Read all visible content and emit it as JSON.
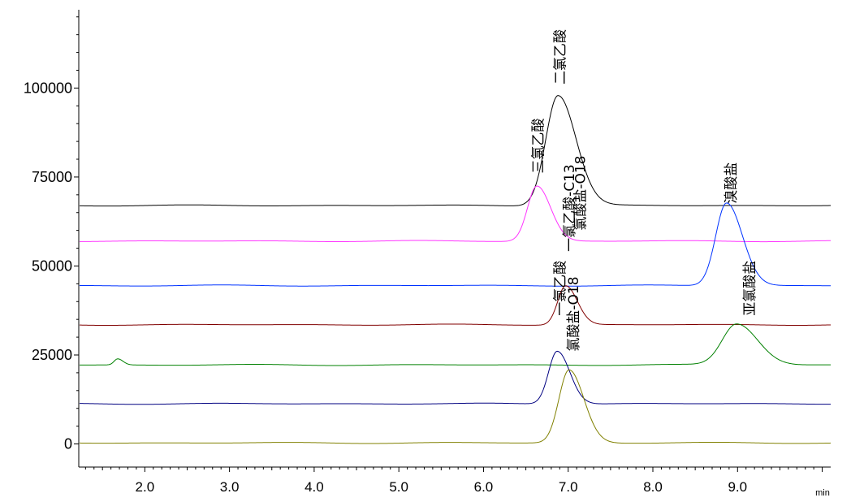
{
  "chart_data": {
    "type": "line",
    "title": "",
    "xlabel": "min",
    "ylabel": "",
    "xlim": [
      1.22,
      10.1
    ],
    "ylim": [
      -6500,
      122000
    ],
    "x_ticks": [
      2.0,
      3.0,
      4.0,
      5.0,
      6.0,
      7.0,
      8.0,
      9.0
    ],
    "x_tick_labels": [
      "2.0",
      "3.0",
      "4.0",
      "5.0",
      "6.0",
      "7.0",
      "8.0",
      "9.0"
    ],
    "y_ticks": [
      0,
      25000,
      50000,
      75000,
      100000
    ],
    "y_tick_labels": [
      "0",
      "25000",
      "50000",
      "75000",
      "100000"
    ],
    "grid": false,
    "legend": "none",
    "series": [
      {
        "color": "#000000",
        "baseline": 67000,
        "peaks": [
          {
            "x": 6.88,
            "y": 98000,
            "label": "二氯乙酸"
          }
        ]
      },
      {
        "color": "#ff33ff",
        "baseline": 57000,
        "peaks": [
          {
            "x": 6.63,
            "y": 72500,
            "label": "三氯乙酸"
          }
        ]
      },
      {
        "color": "#0033ff",
        "baseline": 44500,
        "peaks": [
          {
            "x": 8.87,
            "y": 67800,
            "label": "溴酸盐"
          }
        ]
      },
      {
        "color": "#800000",
        "baseline": 33500,
        "peaks": [
          {
            "x": 6.97,
            "y": 44500,
            "label": "一氯乙酸-C13"
          }
        ]
      },
      {
        "color": "#008000",
        "baseline": 22200,
        "peaks": [
          {
            "x": 1.68,
            "y": 23900,
            "label": ""
          },
          {
            "x": 8.99,
            "y": 33800,
            "label": "亚氯酸盐"
          }
        ]
      },
      {
        "color": "#000080",
        "baseline": 11300,
        "peaks": [
          {
            "x": 6.87,
            "y": 26200,
            "label": "一氯乙酸"
          }
        ]
      },
      {
        "color": "#808000",
        "baseline": 300,
        "peaks": [
          {
            "x": 7.01,
            "y": 20800,
            "label": "氯酸盐-O18"
          }
        ]
      }
    ],
    "annotations": [
      {
        "text": "二氯乙酸",
        "x": 6.96,
        "y": 101000
      },
      {
        "text": "三氯乙酸",
        "x": 6.7,
        "y": 76000
      },
      {
        "text": "溴酸盐",
        "x": 8.98,
        "y": 67500
      },
      {
        "text": "氯酸盐-O18",
        "x": 7.2,
        "y": 60000
      },
      {
        "text": "一氯乙酸-C13",
        "x": 7.07,
        "y": 54000
      },
      {
        "text": "亚氯酸盐",
        "x": 9.2,
        "y": 36000
      },
      {
        "text": "一氯乙酸",
        "x": 6.96,
        "y": 36000
      },
      {
        "text": "氯酸盐-O18",
        "x": 7.12,
        "y": 26000
      }
    ]
  }
}
